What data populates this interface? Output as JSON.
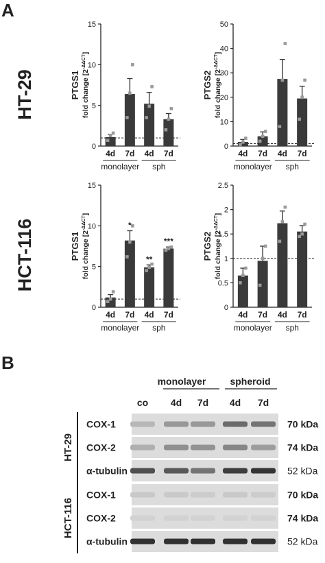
{
  "panels": {
    "a": "A",
    "b": "B"
  },
  "cell_lines": {
    "ht29": "HT-29",
    "hct116": "HCT-116"
  },
  "ylabel": "fold change [2",
  "ylabel_sup": "-ΔΔCT",
  "ylabel_end": "]",
  "group_labels": {
    "mono": "monolayer",
    "sph": "sph"
  },
  "chart_data": [
    {
      "id": "ht29-ptgs1",
      "type": "bar",
      "title": "PTGS1",
      "categories": [
        "4d",
        "7d",
        "4d",
        "7d"
      ],
      "values": [
        1.1,
        6.4,
        5.2,
        3.3
      ],
      "errors": [
        0.35,
        1.9,
        1.4,
        0.7
      ],
      "points": [
        [
          0.7,
          1.3,
          1.6
        ],
        [
          3.5,
          6.5,
          10.0
        ],
        [
          3.5,
          4.9,
          7.3
        ],
        [
          2.0,
          3.3,
          4.6
        ]
      ],
      "ylim": [
        0,
        15
      ],
      "yticks": [
        0,
        5,
        10,
        15
      ],
      "ylabel": "fold change [2-ΔΔCT]",
      "groups": [
        "monolayer",
        "sph"
      ],
      "reference_line": 1,
      "significance": [
        "",
        "",
        "",
        ""
      ]
    },
    {
      "id": "ht29-ptgs2",
      "type": "bar",
      "title": "PTGS2",
      "categories": [
        "4d",
        "7d",
        "4d",
        "7d"
      ],
      "values": [
        1.7,
        4.0,
        27.5,
        19.5
      ],
      "errors": [
        1.0,
        1.8,
        8.0,
        5.0
      ],
      "points": [
        [
          0.6,
          1.6,
          3.2
        ],
        [
          2.0,
          4.0,
          6.0
        ],
        [
          8.0,
          27.0,
          42.0
        ],
        [
          11.0,
          20.0,
          27.0
        ]
      ],
      "ylim": [
        0,
        50
      ],
      "yticks": [
        0,
        10,
        20,
        30,
        40,
        50
      ],
      "ylabel": "fold change [2-ΔΔCT]",
      "groups": [
        "monolayer",
        "sph"
      ],
      "reference_line": 1,
      "significance": [
        "",
        "",
        "",
        ""
      ]
    },
    {
      "id": "hct116-ptgs1",
      "type": "bar",
      "title": "PTGS1",
      "categories": [
        "4d",
        "7d",
        "4d",
        "7d"
      ],
      "values": [
        1.2,
        8.2,
        4.9,
        7.2
      ],
      "errors": [
        0.35,
        1.2,
        0.3,
        0.2
      ],
      "points": [
        [
          0.7,
          1.0,
          1.9
        ],
        [
          6.2,
          8.0,
          10.0
        ],
        [
          4.5,
          4.9,
          5.3
        ],
        [
          7.0,
          7.2,
          7.4
        ]
      ],
      "ylim": [
        0,
        15
      ],
      "yticks": [
        0,
        5,
        10,
        15
      ],
      "ylabel": "fold change [2-ΔΔCT]",
      "groups": [
        "monolayer",
        "sph"
      ],
      "reference_line": 1,
      "significance": [
        "",
        "*",
        "**",
        "***"
      ]
    },
    {
      "id": "hct116-ptgs2",
      "type": "bar",
      "title": "PTGS2",
      "categories": [
        "4d",
        "7d",
        "4d",
        "7d"
      ],
      "values": [
        0.65,
        0.95,
        1.72,
        1.55
      ],
      "errors": [
        0.15,
        0.3,
        0.25,
        0.12
      ],
      "points": [
        [
          0.5,
          0.65,
          0.8
        ],
        [
          0.45,
          1.0,
          1.25
        ],
        [
          1.35,
          1.75,
          2.05
        ],
        [
          1.45,
          1.5,
          1.7
        ]
      ],
      "ylim": [
        0,
        2.5
      ],
      "yticks": [
        0,
        0.5,
        1,
        1.5,
        2,
        2.5
      ],
      "ylabel": "fold change [2-ΔΔCT]",
      "groups": [
        "monolayer",
        "sph"
      ],
      "reference_line": 1,
      "significance": [
        "",
        "",
        "",
        ""
      ]
    }
  ],
  "blot": {
    "group_headers": [
      "monolayer",
      "spheroid"
    ],
    "lanes": [
      "co",
      "4d",
      "7d",
      "4d",
      "7d"
    ],
    "sections": [
      {
        "cell_line": "HT-29",
        "rows": [
          {
            "label": "COX-1",
            "mw": "70 kDa",
            "mw_bold": true,
            "intensity": [
              0.18,
              0.35,
              0.35,
              0.6,
              0.55
            ]
          },
          {
            "label": "COX-2",
            "mw": "74 kDa",
            "mw_bold": true,
            "intensity": [
              0.22,
              0.4,
              0.38,
              0.45,
              0.32
            ]
          },
          {
            "label": "α-tubulin",
            "mw": "52 kDa",
            "mw_bold": false,
            "intensity": [
              0.75,
              0.7,
              0.55,
              0.85,
              0.9
            ]
          }
        ]
      },
      {
        "cell_line": "HCT-116",
        "rows": [
          {
            "label": "COX-1",
            "mw": "70 kDa",
            "mw_bold": true,
            "intensity": [
              0.08,
              0.08,
              0.06,
              0.08,
              0.06
            ]
          },
          {
            "label": "COX-2",
            "mw": "74 kDa",
            "mw_bold": true,
            "intensity": [
              0.03,
              0.03,
              0.03,
              0.03,
              0.03
            ]
          },
          {
            "label": "α-tubulin",
            "mw": "52 kDa",
            "mw_bold": false,
            "intensity": [
              0.92,
              0.92,
              0.92,
              0.92,
              0.92
            ]
          }
        ]
      }
    ]
  }
}
